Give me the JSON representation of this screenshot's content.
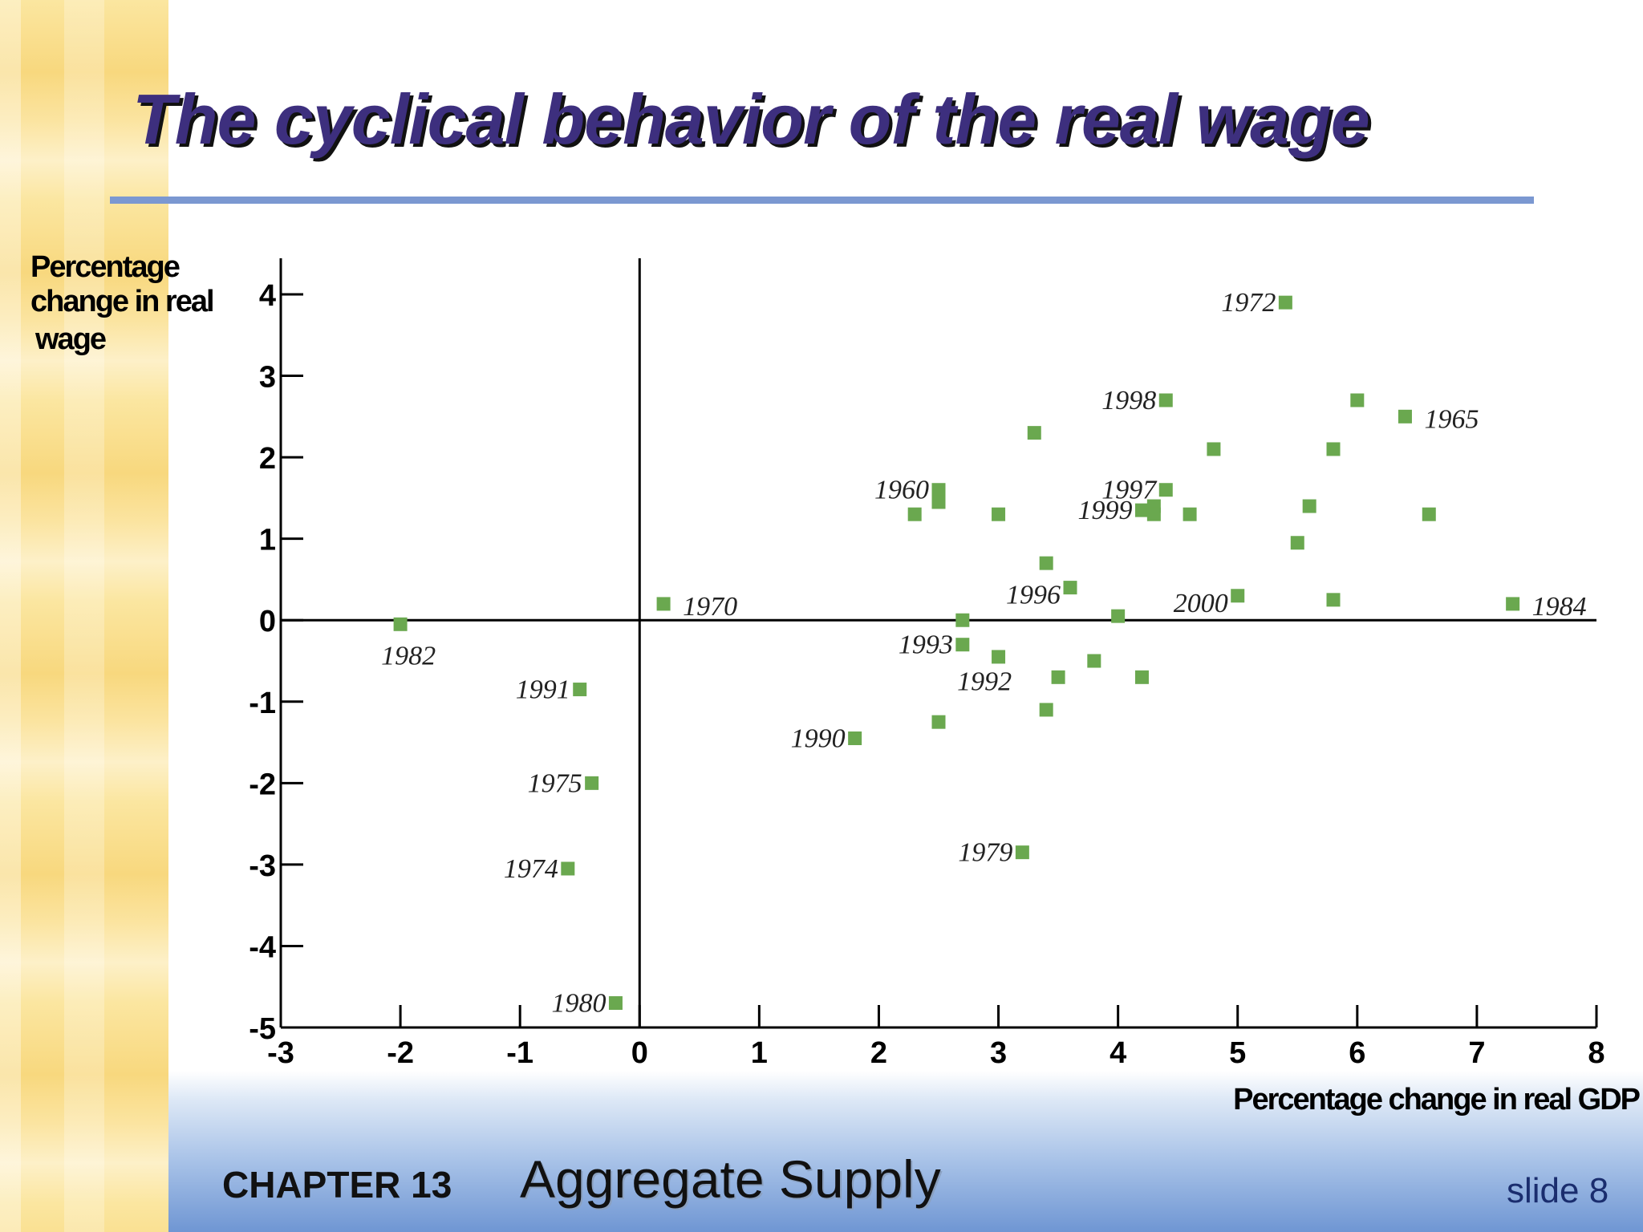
{
  "slide": {
    "title": "The cyclical behavior of the real wage",
    "chapter_label": "CHAPTER 13",
    "subject": "Aggregate Supply",
    "slide_number": "slide 8"
  },
  "colors": {
    "title": "#3d2f7e",
    "marker": "#6aa84f",
    "rule": "#7b98d1"
  },
  "chart_data": {
    "type": "scatter",
    "xlabel": "Percentage change in real GDP",
    "ylabel": [
      "Percentage",
      "change in real",
      "wage"
    ],
    "xlim": [
      -3,
      8
    ],
    "ylim": [
      -5,
      4
    ],
    "x_ticks": [
      "-3",
      "-2",
      "-1",
      "0",
      "1",
      "2",
      "3",
      "4",
      "5",
      "6",
      "7",
      "8"
    ],
    "y_ticks": [
      "4",
      "3",
      "2",
      "1",
      "0",
      "-1",
      "-2",
      "-3",
      "-4",
      "-5"
    ],
    "grid": false,
    "points": [
      {
        "x": 5.4,
        "y": 3.9,
        "label": "1972"
      },
      {
        "x": 4.4,
        "y": 2.7,
        "label": "1998"
      },
      {
        "x": 6.0,
        "y": 2.7,
        "label": ""
      },
      {
        "x": 6.4,
        "y": 2.5,
        "label": "1965"
      },
      {
        "x": 3.3,
        "y": 2.3,
        "label": ""
      },
      {
        "x": 4.8,
        "y": 2.1,
        "label": ""
      },
      {
        "x": 5.8,
        "y": 2.1,
        "label": ""
      },
      {
        "x": 2.5,
        "y": 1.6,
        "label": "1960"
      },
      {
        "x": 2.5,
        "y": 1.45,
        "label": ""
      },
      {
        "x": 2.3,
        "y": 1.3,
        "label": ""
      },
      {
        "x": 3.0,
        "y": 1.3,
        "label": ""
      },
      {
        "x": 4.4,
        "y": 1.6,
        "label": "1997"
      },
      {
        "x": 4.2,
        "y": 1.35,
        "label": "1999"
      },
      {
        "x": 4.3,
        "y": 1.4,
        "label": ""
      },
      {
        "x": 4.3,
        "y": 1.3,
        "label": ""
      },
      {
        "x": 4.6,
        "y": 1.3,
        "label": ""
      },
      {
        "x": 5.6,
        "y": 1.4,
        "label": ""
      },
      {
        "x": 6.6,
        "y": 1.3,
        "label": ""
      },
      {
        "x": 5.5,
        "y": 0.95,
        "label": ""
      },
      {
        "x": 3.4,
        "y": 0.7,
        "label": ""
      },
      {
        "x": 3.6,
        "y": 0.4,
        "label": "1996"
      },
      {
        "x": 5.0,
        "y": 0.3,
        "label": "2000"
      },
      {
        "x": 5.8,
        "y": 0.25,
        "label": ""
      },
      {
        "x": 7.3,
        "y": 0.2,
        "label": "1984"
      },
      {
        "x": 0.2,
        "y": 0.2,
        "label": "1970"
      },
      {
        "x": 4.0,
        "y": 0.05,
        "label": ""
      },
      {
        "x": 2.7,
        "y": 0.0,
        "label": ""
      },
      {
        "x": -2.0,
        "y": -0.05,
        "label": "1982"
      },
      {
        "x": 2.7,
        "y": -0.3,
        "label": "1993"
      },
      {
        "x": 3.0,
        "y": -0.45,
        "label": ""
      },
      {
        "x": 3.8,
        "y": -0.5,
        "label": ""
      },
      {
        "x": 3.5,
        "y": -0.7,
        "label": "1992"
      },
      {
        "x": 4.2,
        "y": -0.7,
        "label": ""
      },
      {
        "x": -0.5,
        "y": -0.85,
        "label": "1991"
      },
      {
        "x": 3.4,
        "y": -1.1,
        "label": ""
      },
      {
        "x": 2.5,
        "y": -1.25,
        "label": ""
      },
      {
        "x": 1.8,
        "y": -1.45,
        "label": "1990"
      },
      {
        "x": -0.4,
        "y": -2.0,
        "label": "1975"
      },
      {
        "x": -0.6,
        "y": -3.05,
        "label": "1974"
      },
      {
        "x": 3.2,
        "y": -2.85,
        "label": "1979"
      },
      {
        "x": -0.2,
        "y": -4.7,
        "label": "1980"
      }
    ]
  }
}
